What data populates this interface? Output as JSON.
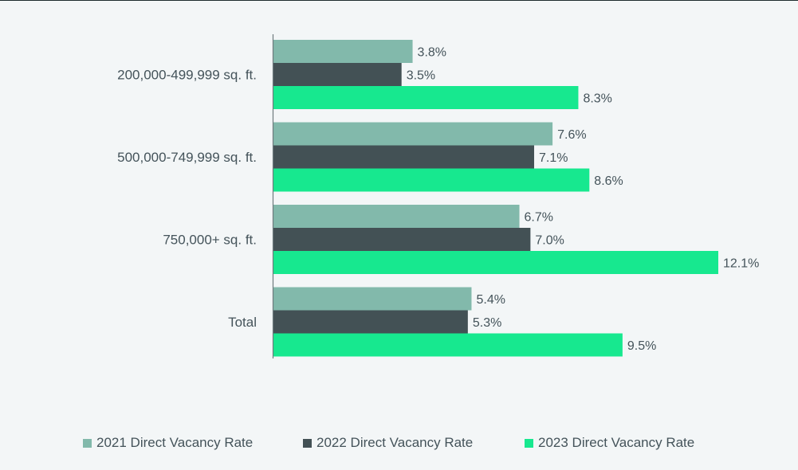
{
  "chart_data": {
    "type": "bar",
    "orientation": "horizontal",
    "categories": [
      "200,000-499,999 sq. ft.",
      "500,000-749,999 sq. ft.",
      "750,000+ sq. ft.",
      "Total"
    ],
    "series": [
      {
        "name": "2021 Direct Vacancy Rate",
        "values": [
          3.8,
          7.6,
          6.7,
          5.4
        ],
        "labels": [
          "3.8%",
          "7.6%",
          "6.7%",
          "5.4%"
        ],
        "color": "#82b9ab"
      },
      {
        "name": "2022 Direct Vacancy Rate",
        "values": [
          3.5,
          7.1,
          7.0,
          5.3
        ],
        "labels": [
          "3.5%",
          "7.1%",
          "7.0%",
          "5.3%"
        ],
        "color": "#435155"
      },
      {
        "name": "2023 Direct Vacancy Rate",
        "values": [
          8.3,
          8.6,
          12.1,
          9.5
        ],
        "labels": [
          "8.3%",
          "8.6%",
          "12.1%",
          "9.5%"
        ],
        "color": "#17e88f"
      }
    ],
    "xlim": [
      0,
      12.1
    ],
    "grid": false,
    "legend_position": "bottom",
    "title": "",
    "xlabel": "",
    "ylabel": ""
  },
  "colors": {
    "background": "#f3f6f7",
    "axis": "#6e7a7e",
    "text": "#44535a"
  }
}
